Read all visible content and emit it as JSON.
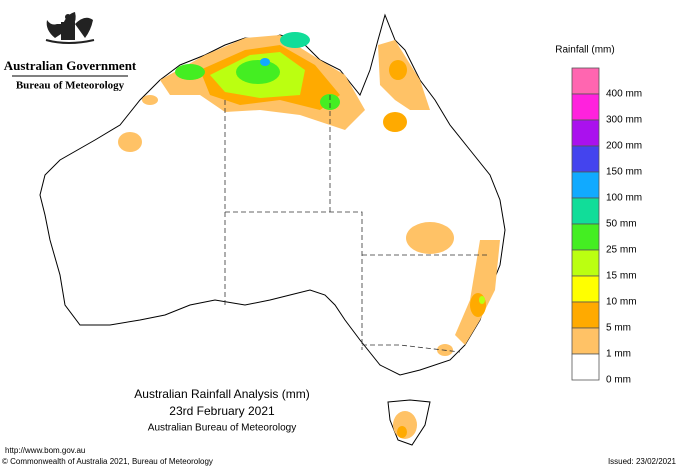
{
  "header": {
    "government": "Australian Government",
    "agency": "Bureau of Meteorology"
  },
  "legend": {
    "title": "Rainfall (mm)",
    "colors": [
      "#ff66b0",
      "#ff22dd",
      "#aa11ee",
      "#4444ee",
      "#11aaff",
      "#11dd99",
      "#44ee22",
      "#bbff11",
      "#ffff00",
      "#ffaa00",
      "#ffc266",
      "#ffffff"
    ],
    "labels": [
      "400 mm",
      "300 mm",
      "200 mm",
      "150 mm",
      "100 mm",
      "50 mm",
      "25 mm",
      "15 mm",
      "10 mm",
      "5 mm",
      "1 mm",
      "0 mm"
    ]
  },
  "map_title": {
    "line1": "Australian Rainfall Analysis (mm)",
    "line2": "23rd February 2021",
    "line3": "Australian Bureau of Meteorology"
  },
  "footer": {
    "url": "http://www.bom.gov.au",
    "copyright": "© Commonwealth of Australia 2021, Bureau of Meteorology",
    "issued": "Issued: 23/02/2021"
  }
}
